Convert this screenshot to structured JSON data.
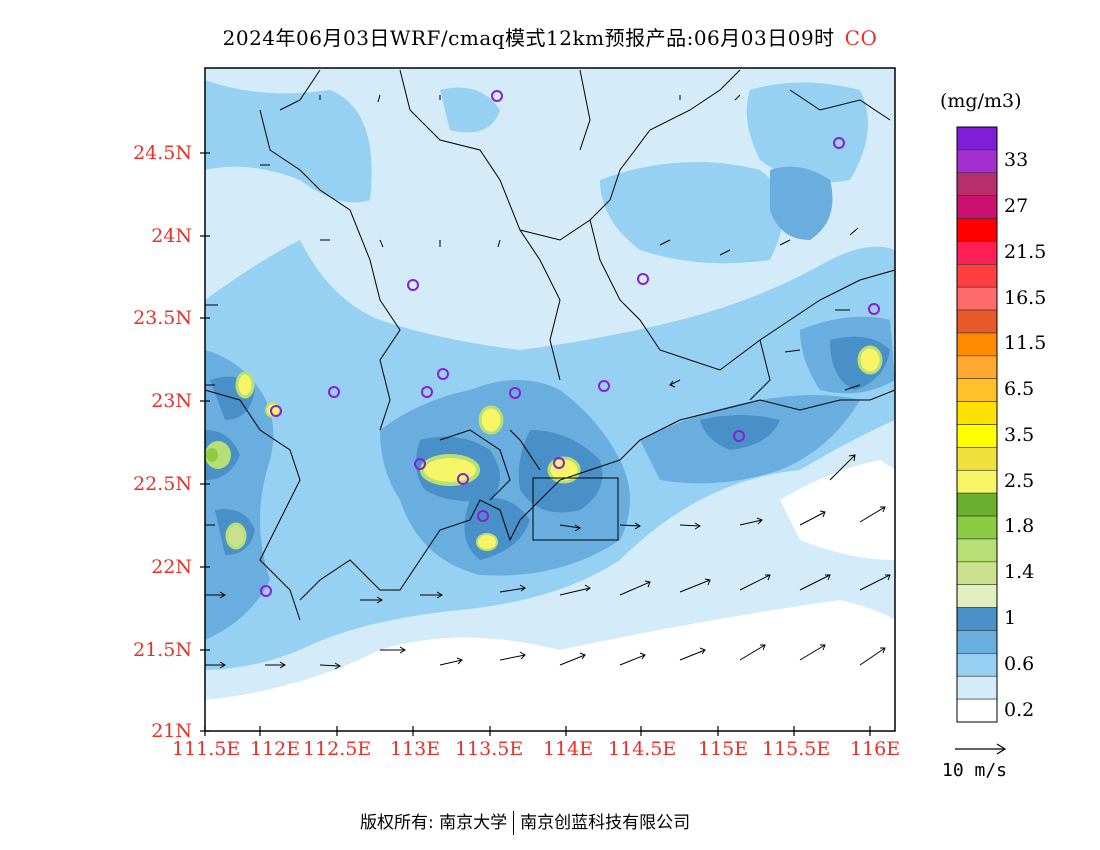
{
  "title": {
    "text": "2024年06月03日WRF/cmaq模式12km预报产品:06月03日09时",
    "variable": "CO"
  },
  "axes": {
    "lat_labels": [
      "24.5N",
      "24N",
      "23.5N",
      "23N",
      "22.5N",
      "22N",
      "21.5N",
      "21N"
    ],
    "lon_labels": [
      "111.5E",
      "112E",
      "112.5E",
      "113E",
      "113.5E",
      "114E",
      "114.5E",
      "115E",
      "115.5E",
      "116E"
    ]
  },
  "colorbar": {
    "unit": "(mg/m3)",
    "labels": [
      "33",
      "27",
      "21.5",
      "16.5",
      "11.5",
      "6.5",
      "3.5",
      "2.5",
      "1.8",
      "1.4",
      "1",
      "0.6",
      "0.2"
    ],
    "colors": [
      "#7f1ed6",
      "#a32fd0",
      "#b72f6a",
      "#cc1070",
      "#ff0000",
      "#ff1f55",
      "#ff3f3f",
      "#ff6a6a",
      "#e85a2a",
      "#ff8c00",
      "#ffa72e",
      "#ffc02a",
      "#ffe000",
      "#ffff00",
      "#f0e040",
      "#f5f567",
      "#6ab02e",
      "#8ccc44",
      "#b6df75",
      "#c9e18c",
      "#e2eec0",
      "#4a90c8",
      "#6aaee0",
      "#96d0f2",
      "#d4ecf9",
      "#ffffff"
    ]
  },
  "wind_legend": {
    "label": "10 m/s"
  },
  "footer": {
    "left": "版权所有: 南京大学",
    "right": "南京创蓝科技有限公司"
  }
}
